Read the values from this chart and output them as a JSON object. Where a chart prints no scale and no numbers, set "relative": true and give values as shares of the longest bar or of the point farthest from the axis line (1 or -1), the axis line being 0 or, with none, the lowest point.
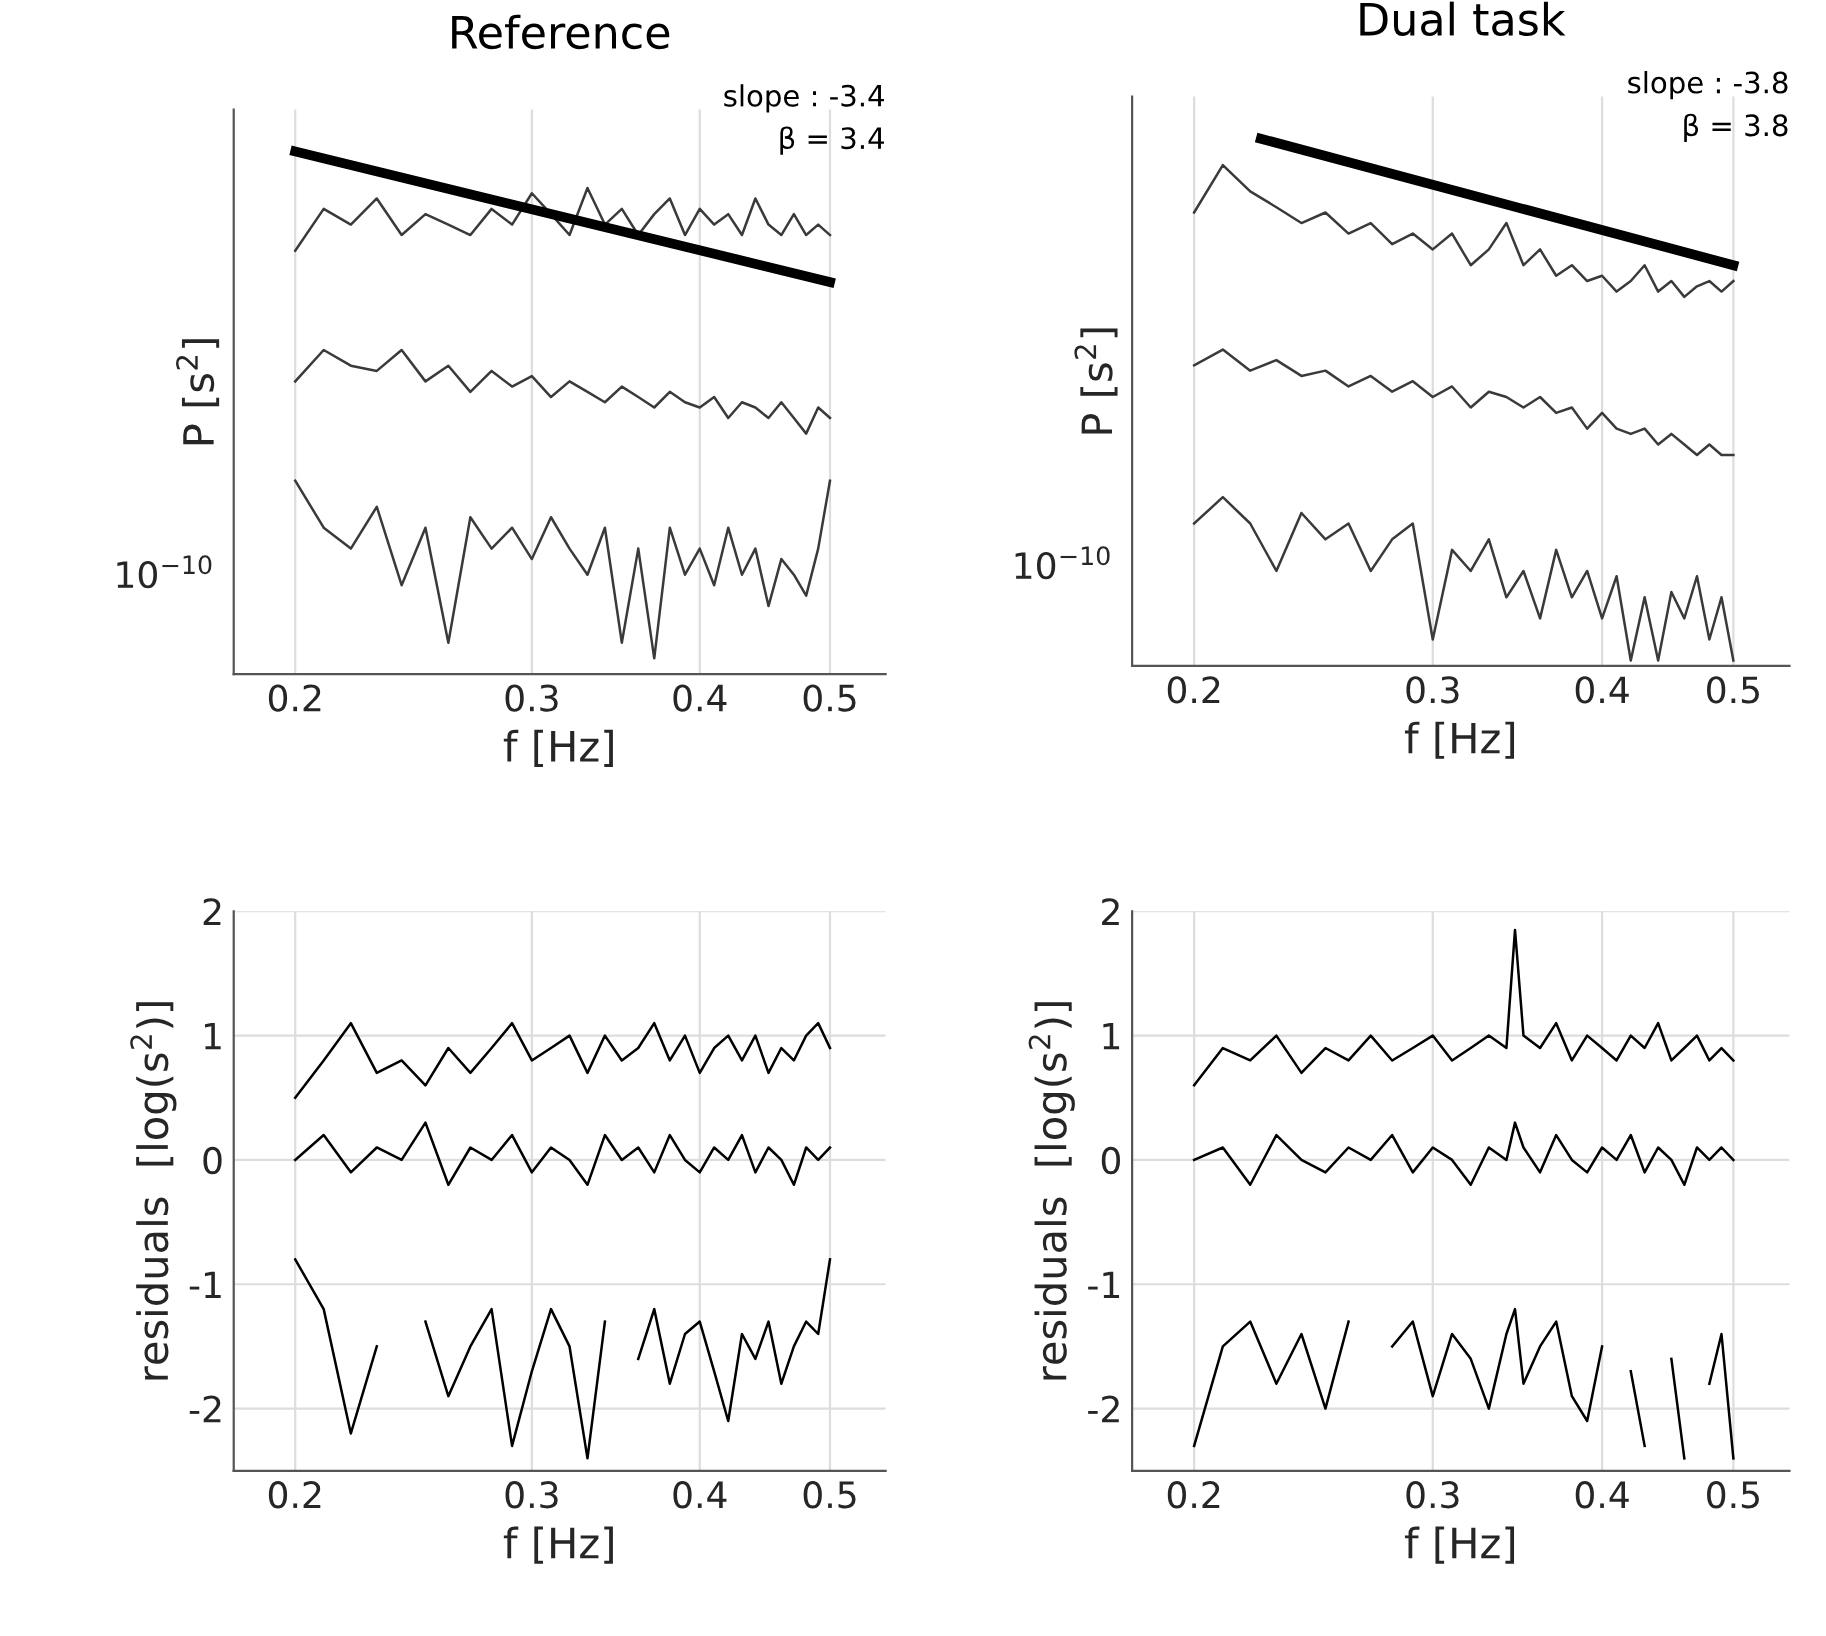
{
  "chart_data": [
    {
      "type": "line",
      "title": "Reference",
      "xlabel": "f [Hz]",
      "ylabel": "P [s$^{2}$]",
      "log": "x",
      "relative": true,
      "grid": "x",
      "xlim": [
        0.18,
        0.55
      ],
      "xticks": [
        0.2,
        0.3,
        0.4,
        0.5
      ],
      "annotations": [
        "10$^{−10}$",
        "slope : -3.4",
        "β = 3.4"
      ],
      "x": [
        0.2,
        0.21,
        0.22,
        0.23,
        0.24,
        0.25,
        0.26,
        0.27,
        0.28,
        0.29,
        0.3,
        0.31,
        0.32,
        0.33,
        0.34,
        0.35,
        0.36,
        0.37,
        0.38,
        0.39,
        0.4,
        0.41,
        0.42,
        0.43,
        0.44,
        0.45,
        0.46,
        0.47,
        0.48,
        0.49,
        0.5
      ],
      "series": [
        {
          "color": "#3a3a3a",
          "values": [
            0.81,
            0.89,
            0.86,
            0.91,
            0.84,
            0.88,
            0.86,
            0.84,
            0.89,
            0.86,
            0.92,
            0.88,
            0.84,
            0.93,
            0.86,
            0.89,
            0.84,
            0.88,
            0.91,
            0.84,
            0.89,
            0.86,
            0.88,
            0.84,
            0.91,
            0.86,
            0.84,
            0.88,
            0.84,
            0.86,
            0.84
          ]
        },
        {
          "color": "#3a3a3a",
          "values": [
            0.56,
            0.62,
            0.59,
            0.58,
            0.62,
            0.56,
            0.59,
            0.54,
            0.58,
            0.55,
            0.57,
            0.53,
            0.56,
            0.54,
            0.52,
            0.55,
            0.53,
            0.51,
            0.54,
            0.52,
            0.51,
            0.53,
            0.49,
            0.52,
            0.51,
            0.49,
            0.52,
            0.49,
            0.46,
            0.51,
            0.49
          ]
        },
        {
          "color": "#3a3a3a",
          "values": [
            0.37,
            0.28,
            0.24,
            0.32,
            0.17,
            0.28,
            0.06,
            0.3,
            0.24,
            0.28,
            0.22,
            0.3,
            0.24,
            0.19,
            0.28,
            0.06,
            0.24,
            0.03,
            0.28,
            0.19,
            0.24,
            0.17,
            0.28,
            0.19,
            0.24,
            0.13,
            0.22,
            0.19,
            0.15,
            0.24,
            0.37
          ]
        },
        {
          "color": "#000000",
          "x": [
            0.2,
            0.5
          ],
          "values": [
            1.0,
            0.75
          ]
        }
      ]
    },
    {
      "type": "line",
      "title": "Dual task",
      "xlabel": "f [Hz]",
      "ylabel": "P [s$^{2}$]",
      "log": "x",
      "relative": true,
      "grid": "x",
      "xlim": [
        0.18,
        0.55
      ],
      "xticks": [
        0.2,
        0.3,
        0.4,
        0.5
      ],
      "annotations": [
        "10$^{−10}$",
        "slope : -3.8",
        "β = 3.8"
      ],
      "x": [
        0.2,
        0.21,
        0.22,
        0.23,
        0.24,
        0.25,
        0.26,
        0.27,
        0.28,
        0.29,
        0.3,
        0.31,
        0.32,
        0.33,
        0.34,
        0.35,
        0.36,
        0.37,
        0.38,
        0.39,
        0.4,
        0.41,
        0.42,
        0.43,
        0.44,
        0.45,
        0.46,
        0.47,
        0.48,
        0.49,
        0.5
      ],
      "series": [
        {
          "color": "#3a3a3a",
          "values": [
            0.86,
            0.95,
            0.9,
            0.87,
            0.84,
            0.86,
            0.82,
            0.84,
            0.8,
            0.82,
            0.79,
            0.82,
            0.76,
            0.79,
            0.84,
            0.76,
            0.79,
            0.74,
            0.76,
            0.73,
            0.74,
            0.71,
            0.73,
            0.76,
            0.71,
            0.73,
            0.7,
            0.72,
            0.73,
            0.71,
            0.73
          ]
        },
        {
          "color": "#3a3a3a",
          "values": [
            0.57,
            0.6,
            0.56,
            0.58,
            0.55,
            0.56,
            0.53,
            0.55,
            0.52,
            0.54,
            0.51,
            0.53,
            0.49,
            0.52,
            0.51,
            0.49,
            0.51,
            0.48,
            0.49,
            0.45,
            0.48,
            0.45,
            0.44,
            0.45,
            0.42,
            0.44,
            0.42,
            0.4,
            0.42,
            0.4,
            0.4
          ]
        },
        {
          "color": "#3a3a3a",
          "values": [
            0.27,
            0.32,
            0.27,
            0.18,
            0.29,
            0.24,
            0.27,
            0.18,
            0.24,
            0.27,
            0.05,
            0.22,
            0.18,
            0.24,
            0.13,
            0.18,
            0.09,
            0.22,
            0.13,
            0.18,
            0.09,
            0.17,
            0.01,
            0.13,
            0.01,
            0.14,
            0.09,
            0.17,
            0.05,
            0.13,
            0.01
          ]
        },
        {
          "color": "#000000",
          "x": [
            0.224,
            0.5
          ],
          "values": [
            1.0,
            0.76
          ]
        }
      ]
    },
    {
      "type": "line",
      "xlabel": "f [Hz]",
      "ylabel": "residuals  [log(s$^{2}$)]",
      "log": "x",
      "grid": true,
      "xlim": [
        0.18,
        0.55
      ],
      "ylim": [
        -2.5,
        2
      ],
      "xticks": [
        0.2,
        0.3,
        0.4,
        0.5
      ],
      "yticks": [
        -2,
        -1,
        0,
        1,
        2
      ],
      "x": [
        0.2,
        0.21,
        0.22,
        0.23,
        0.24,
        0.25,
        0.26,
        0.27,
        0.28,
        0.29,
        0.3,
        0.31,
        0.32,
        0.33,
        0.34,
        0.35,
        0.36,
        0.37,
        0.38,
        0.39,
        0.4,
        0.41,
        0.42,
        0.43,
        0.44,
        0.45,
        0.46,
        0.47,
        0.48,
        0.49,
        0.5
      ],
      "series": [
        {
          "color": "#000000",
          "values": [
            0.5,
            0.8,
            1.1,
            0.7,
            0.8,
            0.6,
            0.9,
            0.7,
            0.9,
            1.1,
            0.8,
            0.9,
            1.0,
            0.7,
            1.0,
            0.8,
            0.9,
            1.1,
            0.8,
            1.0,
            0.7,
            0.9,
            1.0,
            0.8,
            1.0,
            0.7,
            0.9,
            0.8,
            1.0,
            1.1,
            0.9
          ]
        },
        {
          "color": "#000000",
          "values": [
            0.0,
            0.2,
            -0.1,
            0.1,
            0.0,
            0.3,
            -0.2,
            0.1,
            0.0,
            0.2,
            -0.1,
            0.1,
            0.0,
            -0.2,
            0.2,
            0.0,
            0.1,
            -0.1,
            0.2,
            0.0,
            -0.1,
            0.1,
            0.0,
            0.2,
            -0.1,
            0.1,
            0.0,
            -0.2,
            0.1,
            0.0,
            0.1
          ]
        },
        {
          "color": "#000000",
          "values": [
            -0.8,
            -1.2,
            -2.2,
            -1.5,
            null,
            -1.3,
            -1.9,
            -1.5,
            -1.2,
            -2.3,
            -1.7,
            -1.2,
            -1.5,
            -2.4,
            -1.3,
            null,
            -1.6,
            -1.2,
            -1.8,
            -1.4,
            -1.3,
            -1.7,
            -2.1,
            -1.4,
            -1.6,
            -1.3,
            -1.8,
            -1.5,
            -1.3,
            -1.4,
            -0.8
          ]
        }
      ]
    },
    {
      "type": "line",
      "xlabel": "f [Hz]",
      "ylabel": "residuals  [log(s$^{2}$)]",
      "log": "x",
      "grid": true,
      "xlim": [
        0.18,
        0.55
      ],
      "ylim": [
        -2.5,
        2
      ],
      "xticks": [
        0.2,
        0.3,
        0.4,
        0.5
      ],
      "yticks": [
        -2,
        -1,
        0,
        1,
        2
      ],
      "x": [
        0.2,
        0.21,
        0.22,
        0.23,
        0.24,
        0.25,
        0.26,
        0.27,
        0.28,
        0.29,
        0.3,
        0.31,
        0.32,
        0.33,
        0.34,
        0.345,
        0.35,
        0.36,
        0.37,
        0.38,
        0.39,
        0.4,
        0.41,
        0.42,
        0.43,
        0.44,
        0.45,
        0.46,
        0.47,
        0.48,
        0.49,
        0.5
      ],
      "series": [
        {
          "color": "#000000",
          "values": [
            0.6,
            0.9,
            0.8,
            1.0,
            0.7,
            0.9,
            0.8,
            1.0,
            0.8,
            0.9,
            1.0,
            0.8,
            0.9,
            1.0,
            0.9,
            1.85,
            1.0,
            0.9,
            1.1,
            0.8,
            1.0,
            0.9,
            0.8,
            1.0,
            0.9,
            1.1,
            0.8,
            0.9,
            1.0,
            0.8,
            0.9,
            0.8
          ]
        },
        {
          "color": "#000000",
          "values": [
            0.0,
            0.1,
            -0.2,
            0.2,
            0.0,
            -0.1,
            0.1,
            0.0,
            0.2,
            -0.1,
            0.1,
            0.0,
            -0.2,
            0.1,
            0.0,
            0.3,
            0.1,
            -0.1,
            0.2,
            0.0,
            -0.1,
            0.1,
            0.0,
            0.2,
            -0.1,
            0.1,
            0.0,
            -0.2,
            0.1,
            0.0,
            0.1,
            0.0
          ]
        },
        {
          "color": "#000000",
          "values": [
            -2.3,
            -1.5,
            -1.3,
            -1.8,
            -1.4,
            -2.0,
            -1.3,
            null,
            -1.5,
            -1.3,
            -1.9,
            -1.4,
            -1.6,
            -2.0,
            -1.4,
            -1.2,
            -1.8,
            -1.5,
            -1.3,
            -1.9,
            -2.1,
            -1.5,
            null,
            -1.7,
            -2.3,
            null,
            -1.6,
            -2.4,
            null,
            -1.8,
            -1.4,
            -2.4
          ]
        }
      ]
    }
  ]
}
